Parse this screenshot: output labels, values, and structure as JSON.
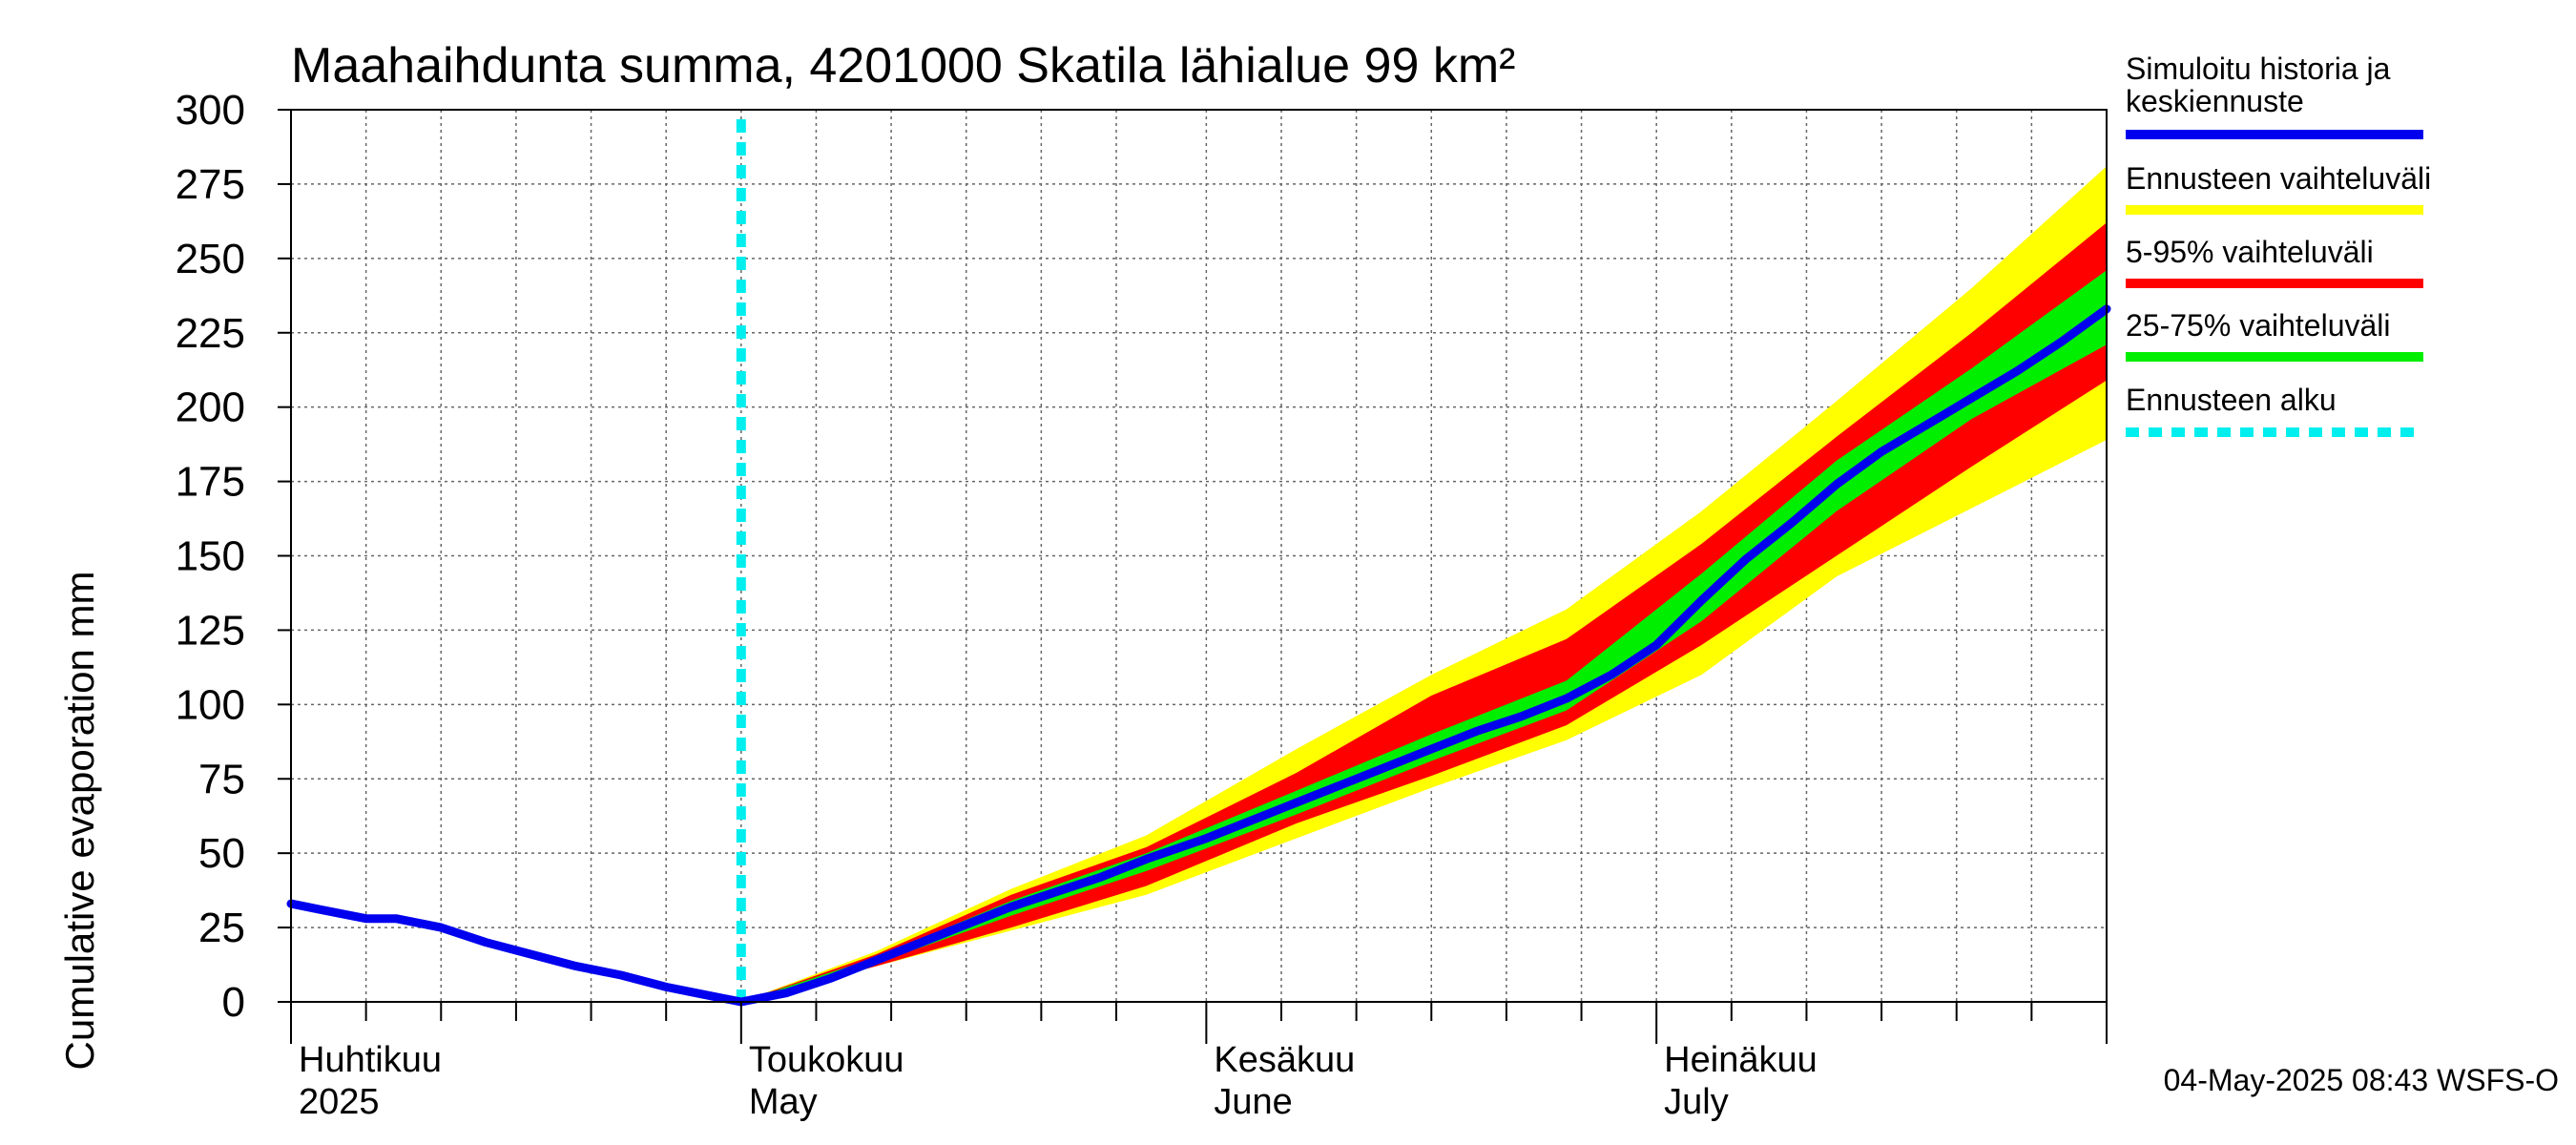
{
  "chart_data": {
    "type": "area",
    "title": "Maahaihdunta summa, 4201000 Skatila lähialue 99 km²",
    "xlabel": "",
    "ylabel": "Cumulative evaporation   mm",
    "ylim": [
      0,
      300
    ],
    "yticks": [
      0,
      25,
      50,
      75,
      100,
      125,
      150,
      175,
      200,
      225,
      250,
      275,
      300
    ],
    "xlim": [
      "2025-04-01",
      "2025-07-31"
    ],
    "x_unit": "date",
    "grid": true,
    "month_labels": [
      {
        "date": "2025-04-01",
        "line1": "Huhtikuu",
        "line2": "2025"
      },
      {
        "date": "2025-05-01",
        "line1": "Toukokuu",
        "line2": "May"
      },
      {
        "date": "2025-06-01",
        "line1": "Kesäkuu",
        "line2": "June"
      },
      {
        "date": "2025-07-01",
        "line1": "Heinäkuu",
        "line2": "July"
      }
    ],
    "forecast_start": "2025-05-01",
    "series": [
      {
        "name": "Simuloitu historia ja keskiennuste",
        "color": "#0000ee",
        "role": "line",
        "points": [
          [
            "2025-04-01",
            33
          ],
          [
            "2025-04-03",
            31
          ],
          [
            "2025-04-06",
            28
          ],
          [
            "2025-04-08",
            28
          ],
          [
            "2025-04-11",
            25
          ],
          [
            "2025-04-14",
            20
          ],
          [
            "2025-04-17",
            16
          ],
          [
            "2025-04-20",
            12
          ],
          [
            "2025-04-23",
            9
          ],
          [
            "2025-04-26",
            5
          ],
          [
            "2025-04-28",
            3
          ],
          [
            "2025-05-01",
            0
          ],
          [
            "2025-05-04",
            3
          ],
          [
            "2025-05-07",
            8
          ],
          [
            "2025-05-10",
            14
          ],
          [
            "2025-05-13",
            20
          ],
          [
            "2025-05-16",
            26
          ],
          [
            "2025-05-19",
            32
          ],
          [
            "2025-05-22",
            37
          ],
          [
            "2025-05-25",
            42
          ],
          [
            "2025-05-28",
            48
          ],
          [
            "2025-06-01",
            55
          ],
          [
            "2025-06-04",
            61
          ],
          [
            "2025-06-07",
            67
          ],
          [
            "2025-06-10",
            73
          ],
          [
            "2025-06-13",
            79
          ],
          [
            "2025-06-16",
            85
          ],
          [
            "2025-06-19",
            91
          ],
          [
            "2025-06-22",
            96
          ],
          [
            "2025-06-25",
            102
          ],
          [
            "2025-06-28",
            110
          ],
          [
            "2025-07-01",
            120
          ],
          [
            "2025-07-04",
            135
          ],
          [
            "2025-07-07",
            149
          ],
          [
            "2025-07-10",
            161
          ],
          [
            "2025-07-13",
            174
          ],
          [
            "2025-07-16",
            185
          ],
          [
            "2025-07-19",
            194
          ],
          [
            "2025-07-22",
            203
          ],
          [
            "2025-07-25",
            212
          ],
          [
            "2025-07-28",
            222
          ],
          [
            "2025-07-31",
            233
          ]
        ]
      },
      {
        "name": "Ennusteen vaihteluväli",
        "color": "#ffff00",
        "role": "band",
        "x": [
          "2025-05-01",
          "2025-05-10",
          "2025-05-19",
          "2025-05-28",
          "2025-06-07",
          "2025-06-16",
          "2025-06-25",
          "2025-07-04",
          "2025-07-13",
          "2025-07-22",
          "2025-07-31"
        ],
        "lower": [
          0,
          12,
          24,
          36,
          55,
          72,
          88,
          110,
          143,
          166,
          189
        ],
        "upper": [
          0,
          17,
          38,
          56,
          85,
          110,
          132,
          165,
          202,
          240,
          281
        ]
      },
      {
        "name": "5-95% vaihteluväli",
        "color": "#ff0000",
        "role": "band",
        "x": [
          "2025-05-01",
          "2025-05-10",
          "2025-05-19",
          "2025-05-28",
          "2025-06-07",
          "2025-06-16",
          "2025-06-25",
          "2025-07-04",
          "2025-07-13",
          "2025-07-22",
          "2025-07-31"
        ],
        "lower": [
          0,
          12,
          25,
          39,
          60,
          76,
          93,
          120,
          150,
          180,
          209
        ],
        "upper": [
          0,
          16,
          36,
          52,
          77,
          103,
          122,
          154,
          190,
          225,
          262
        ]
      },
      {
        "name": "25-75% vaihteluväli",
        "color": "#00ee00",
        "role": "band",
        "x": [
          "2025-05-01",
          "2025-05-10",
          "2025-05-19",
          "2025-05-28",
          "2025-06-07",
          "2025-06-16",
          "2025-06-25",
          "2025-07-04",
          "2025-07-13",
          "2025-07-22",
          "2025-07-31"
        ],
        "lower": [
          0,
          13,
          29,
          44,
          63,
          81,
          98,
          128,
          165,
          196,
          221
        ],
        "upper": [
          0,
          15,
          34,
          50,
          71,
          90,
          108,
          144,
          182,
          213,
          246
        ]
      },
      {
        "name": "Ennusteen alku",
        "color": "#00eeee",
        "role": "vline"
      }
    ],
    "legend": {
      "placement": "right",
      "entries": [
        {
          "line1": "Simuloitu historia ja",
          "line2": "keskiennuste",
          "color": "#0000ee",
          "style": "solid"
        },
        {
          "line1": "Ennusteen vaihteluväli",
          "line2": "",
          "color": "#ffff00",
          "style": "solid"
        },
        {
          "line1": "5-95% vaihteluväli",
          "line2": "",
          "color": "#ff0000",
          "style": "solid"
        },
        {
          "line1": "25-75% vaihteluväli",
          "line2": "",
          "color": "#00ee00",
          "style": "solid"
        },
        {
          "line1": "Ennusteen alku",
          "line2": "",
          "color": "#00eeee",
          "style": "dotted"
        }
      ]
    }
  },
  "footer": "04-May-2025 08:43 WSFS-O"
}
